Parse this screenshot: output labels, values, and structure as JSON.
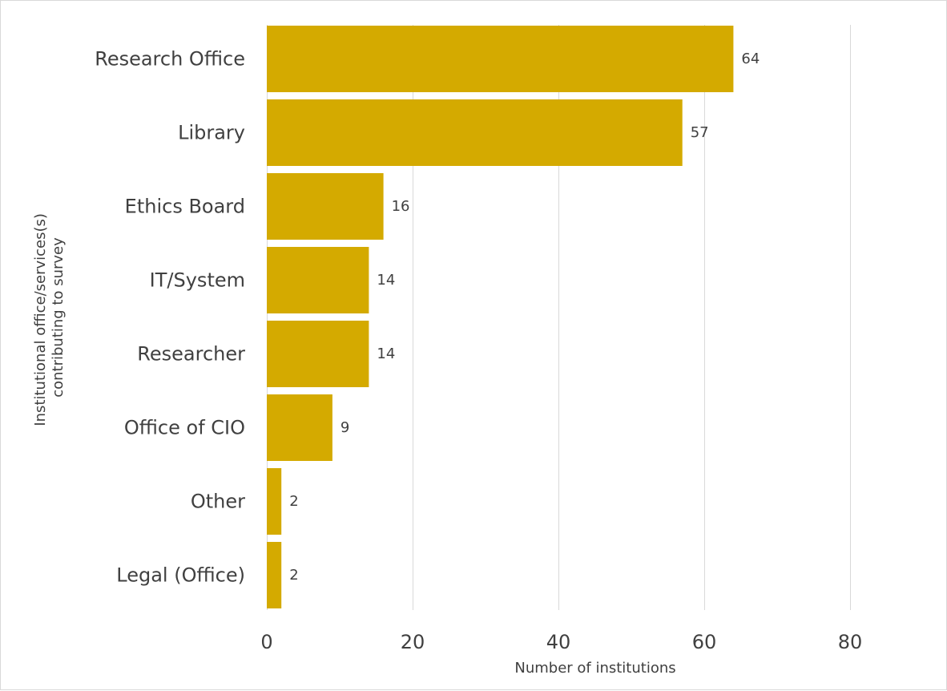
{
  "chart_data": {
    "type": "bar",
    "orientation": "horizontal",
    "categories": [
      "Research Office",
      "Library",
      "Ethics Board",
      "IT/System",
      "Researcher",
      "Office of CIO",
      "Other",
      "Legal (Office)"
    ],
    "values": [
      64,
      57,
      16,
      14,
      14,
      9,
      2,
      2
    ],
    "xlabel": "Number of institutions",
    "ylabel_lines": [
      "Institutional office/services(s)",
      "contributing to survey"
    ],
    "xlim": [
      0,
      80
    ],
    "xticks": [
      0,
      20,
      40,
      60,
      80
    ],
    "grid": "vertical",
    "legend": "none",
    "data_labels": true,
    "bar_color": "#d4aa00",
    "grid_color": "#d9d9d9",
    "text_color": "#404040"
  }
}
